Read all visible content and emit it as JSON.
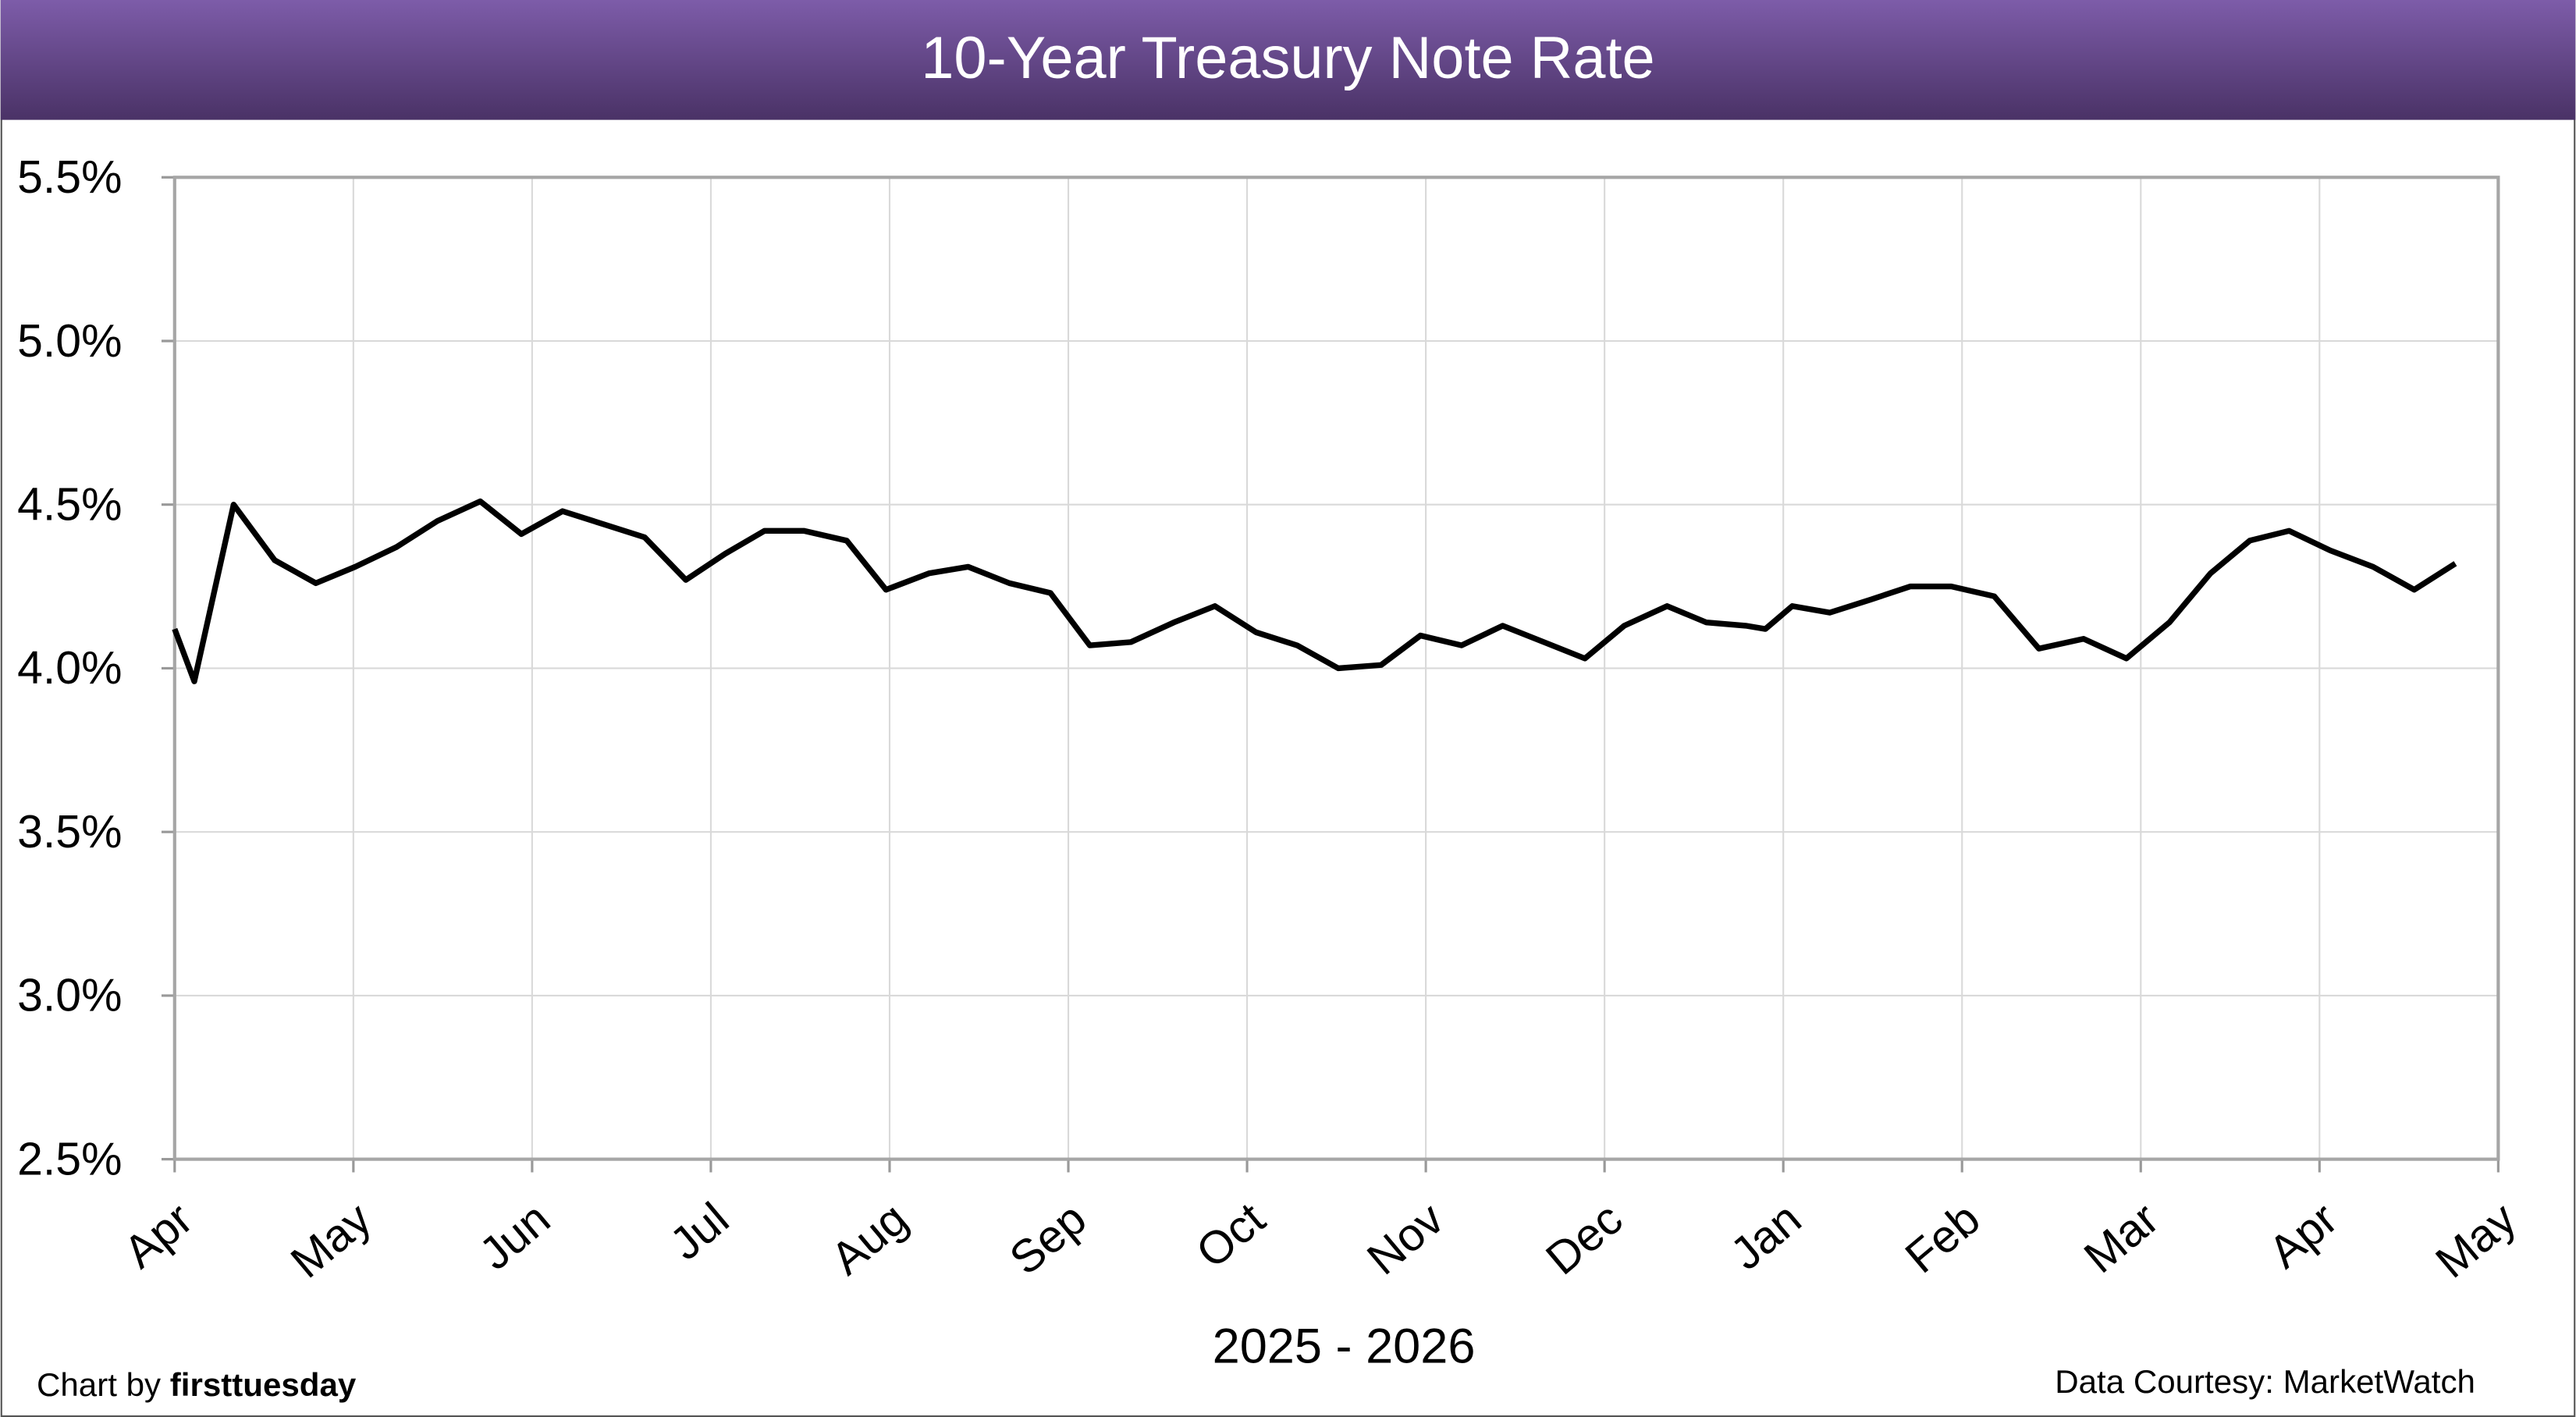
{
  "chart_data": {
    "type": "line",
    "title": "10-Year Treasury Note Rate",
    "x_label": "2025 - 2026",
    "credit_prefix": "Chart by",
    "credit_name": "firsttuesday",
    "source": "Data Courtesy: MarketWatch",
    "grid": true,
    "xlim": [
      0,
      13
    ],
    "xticks": [
      {
        "value": 0,
        "label": "Apr"
      },
      {
        "value": 1,
        "label": "May"
      },
      {
        "value": 2,
        "label": "Jun"
      },
      {
        "value": 3,
        "label": "Jul"
      },
      {
        "value": 4,
        "label": "Aug"
      },
      {
        "value": 5,
        "label": "Sep"
      },
      {
        "value": 6,
        "label": "Oct"
      },
      {
        "value": 7,
        "label": "Nov"
      },
      {
        "value": 8,
        "label": "Dec"
      },
      {
        "value": 9,
        "label": "Jan"
      },
      {
        "value": 10,
        "label": "Feb"
      },
      {
        "value": 11,
        "label": "Mar"
      },
      {
        "value": 12,
        "label": "Apr"
      },
      {
        "value": 13,
        "label": "May"
      }
    ],
    "ylim": [
      2.5,
      5.5
    ],
    "yticks": [
      {
        "value": 2.5,
        "label": "2.5%"
      },
      {
        "value": 3.0,
        "label": "3.0%"
      },
      {
        "value": 3.5,
        "label": "3.5%"
      },
      {
        "value": 4.0,
        "label": "4.0%"
      },
      {
        "value": 4.5,
        "label": "4.5%"
      },
      {
        "value": 5.0,
        "label": "5.0%"
      },
      {
        "value": 5.5,
        "label": "5.5%"
      }
    ],
    "x": [
      0,
      0.11,
      0.33,
      0.56,
      0.79,
      1.01,
      1.24,
      1.47,
      1.71,
      1.94,
      2.17,
      2.4,
      2.63,
      2.86,
      3.08,
      3.3,
      3.52,
      3.76,
      3.98,
      4.22,
      4.44,
      4.67,
      4.9,
      5.12,
      5.35,
      5.59,
      5.82,
      6.05,
      6.28,
      6.51,
      6.75,
      6.97,
      7.2,
      7.43,
      7.66,
      7.89,
      8.11,
      8.35,
      8.57,
      8.79,
      8.9,
      9.05,
      9.26,
      9.49,
      9.71,
      9.94,
      10.18,
      10.43,
      10.68,
      10.92,
      11.16,
      11.39,
      11.61,
      11.83,
      12.06,
      12.3,
      12.53,
      12.76
    ],
    "series": [
      {
        "color": "#000000",
        "values": [
          4.12,
          3.96,
          4.5,
          4.33,
          4.26,
          4.31,
          4.37,
          4.45,
          4.51,
          4.41,
          4.48,
          4.44,
          4.4,
          4.27,
          4.35,
          4.42,
          4.42,
          4.39,
          4.24,
          4.29,
          4.31,
          4.26,
          4.23,
          4.07,
          4.08,
          4.14,
          4.19,
          4.11,
          4.07,
          4.0,
          4.01,
          4.1,
          4.07,
          4.13,
          4.08,
          4.03,
          4.13,
          4.19,
          4.14,
          4.13,
          4.12,
          4.19,
          4.17,
          4.21,
          4.25,
          4.25,
          4.22,
          4.06,
          4.09,
          4.03,
          4.14,
          4.29,
          4.39,
          4.42,
          4.36,
          4.31,
          4.24,
          4.32
        ]
      }
    ]
  }
}
